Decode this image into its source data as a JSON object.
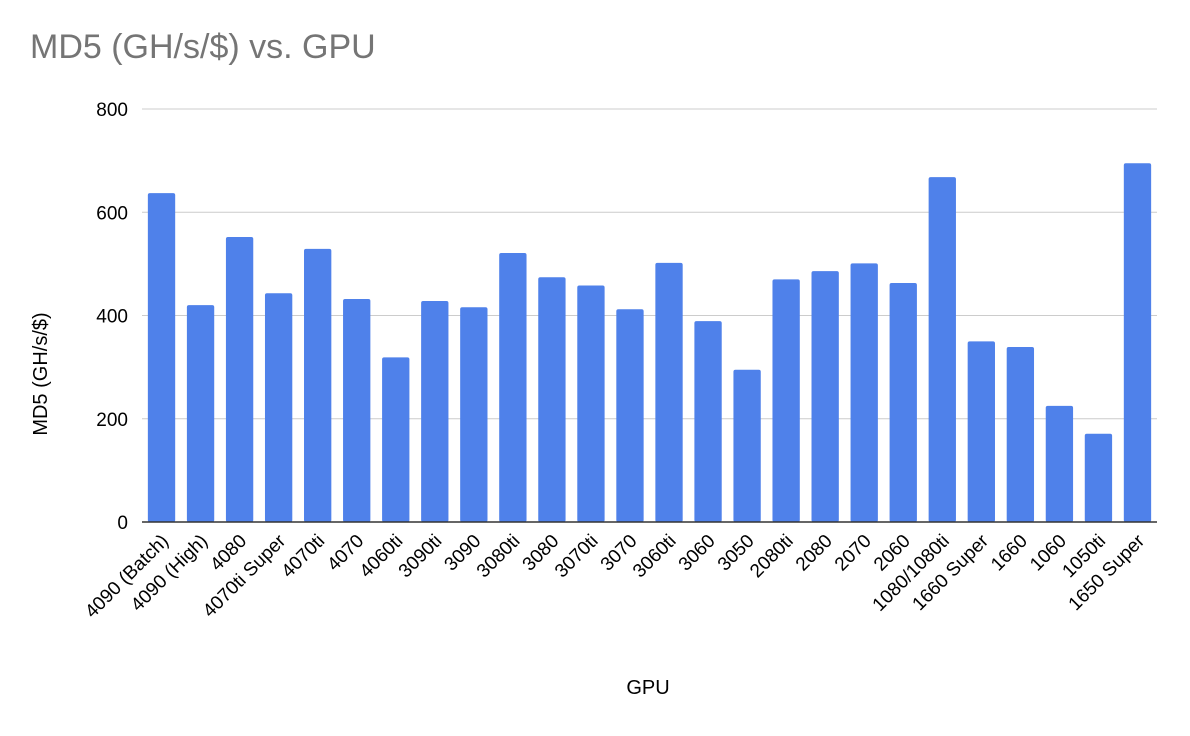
{
  "chart_data": {
    "type": "bar",
    "title": "MD5 (GH/s/$) vs. GPU",
    "xlabel": "GPU",
    "ylabel": "MD5 (GH/s/$)",
    "ylim": [
      0,
      800
    ],
    "yticks": [
      0,
      200,
      400,
      600,
      800
    ],
    "grid": true,
    "legend": "none",
    "bar_color": "#4f81ea",
    "categories": [
      "4090 (Batch)",
      "4090 (High)",
      "4080",
      "4070ti Super",
      "4070ti",
      "4070",
      "4060ti",
      "3090ti",
      "3090",
      "3080ti",
      "3080",
      "3070ti",
      "3070",
      "3060ti",
      "3060",
      "3050",
      "2080ti",
      "2080",
      "2070",
      "2060",
      "1080/1080ti",
      "1660 Super",
      "1660",
      "1060",
      "1050ti",
      "1650 Super"
    ],
    "values": [
      637,
      420,
      552,
      443,
      529,
      432,
      319,
      428,
      416,
      521,
      474,
      458,
      412,
      502,
      389,
      295,
      470,
      486,
      501,
      463,
      668,
      350,
      339,
      225,
      171,
      695
    ]
  }
}
